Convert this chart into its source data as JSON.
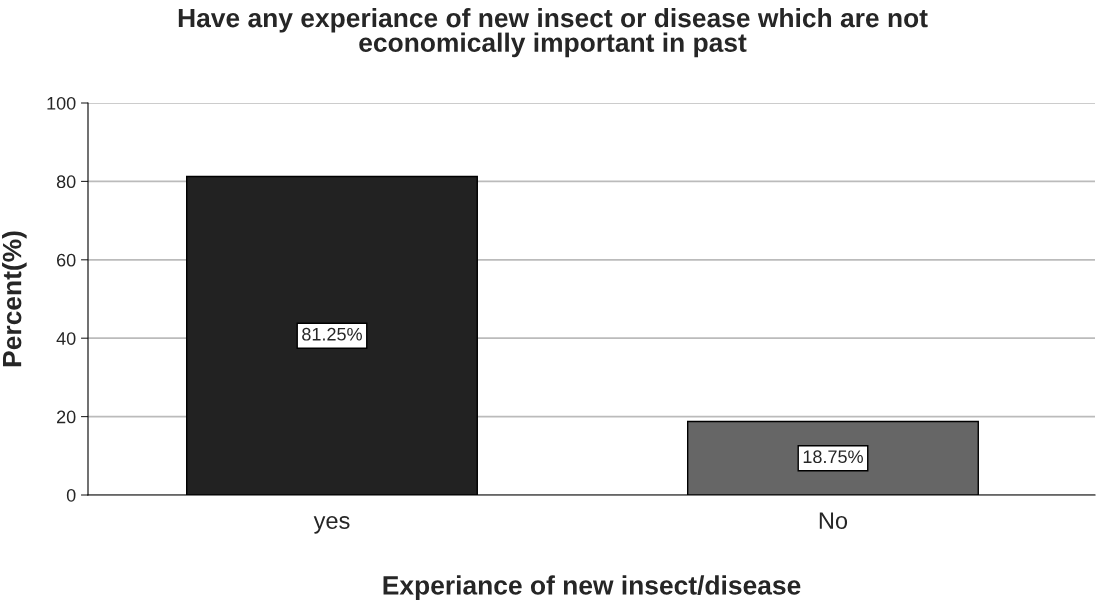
{
  "chart_data": {
    "type": "bar",
    "title": "Have any experiance of new insect or disease which are not\neconomically important in past",
    "xlabel": "Experiance of new insect/disease",
    "ylabel": "Percent(%)",
    "categories": [
      "yes",
      "No"
    ],
    "values": [
      81.25,
      18.75
    ],
    "colors": [
      "#222222",
      "#666666"
    ],
    "value_labels": [
      "81.25%",
      "18.75%"
    ],
    "ylim": [
      0,
      100
    ],
    "yticks": [
      0,
      20,
      40,
      60,
      80,
      100
    ],
    "grid": "y"
  }
}
